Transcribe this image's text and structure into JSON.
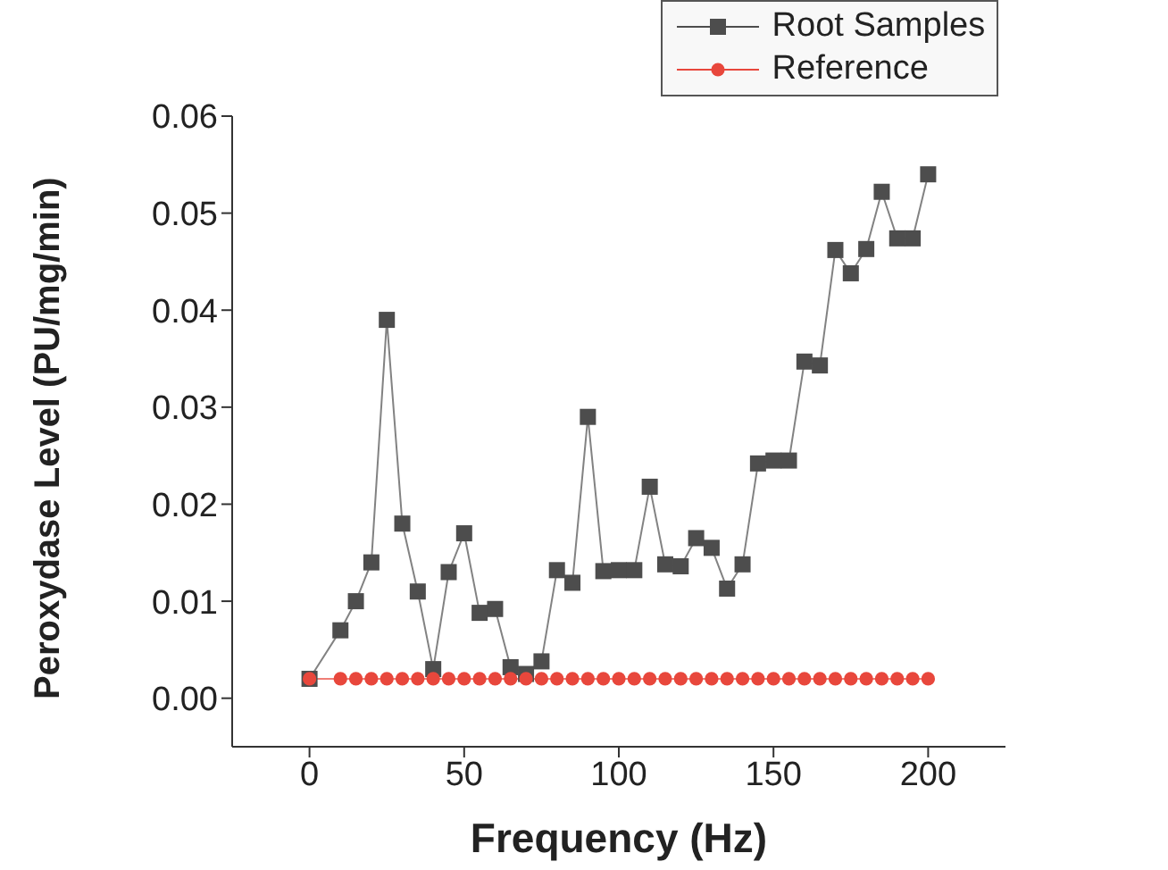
{
  "chart_data": {
    "type": "line",
    "xlabel": "Frequency (Hz)",
    "ylabel": "Peroxydase Level (PU/mg/min)",
    "xlim": [
      -25,
      225
    ],
    "xticks": [
      0,
      50,
      100,
      150,
      200
    ],
    "ylim": [
      -0.005,
      0.06
    ],
    "yticks": [
      {
        "value": 0,
        "label": "0.00"
      },
      {
        "value": 0.01,
        "label": "0.01"
      },
      {
        "value": 0.02,
        "label": "0.02"
      },
      {
        "value": 0.03,
        "label": "0.03"
      },
      {
        "value": 0.04,
        "label": "0.04"
      },
      {
        "value": 0.05,
        "label": "0.05"
      },
      {
        "value": 0.06,
        "label": "0.06"
      }
    ],
    "grid": false,
    "legend": "top right",
    "series": [
      {
        "name": "Root Samples",
        "color": "#4d4d4d",
        "marker": "square",
        "x": [
          0,
          10,
          15,
          20,
          25,
          30,
          35,
          40,
          45,
          50,
          55,
          60,
          65,
          70,
          75,
          80,
          85,
          90,
          95,
          100,
          105,
          110,
          115,
          120,
          125,
          130,
          135,
          140,
          145,
          150,
          155,
          160,
          165,
          170,
          175,
          180,
          185,
          190,
          195,
          200
        ],
        "values": [
          0.002,
          0.007,
          0.01,
          0.014,
          0.039,
          0.018,
          0.011,
          0.003,
          0.013,
          0.017,
          0.0088,
          0.0092,
          0.0032,
          0.0025,
          0.0038,
          0.0132,
          0.0119,
          0.029,
          0.0131,
          0.0132,
          0.0132,
          0.0218,
          0.0138,
          0.0136,
          0.0165,
          0.0155,
          0.0113,
          0.0138,
          0.0242,
          0.0245,
          0.0245,
          0.0347,
          0.0343,
          0.0462,
          0.0438,
          0.0463,
          0.0522,
          0.0474,
          0.0474,
          0.054
        ]
      },
      {
        "name": "Reference",
        "color": "#e8473c",
        "marker": "circle",
        "x": [
          0,
          10,
          15,
          20,
          25,
          30,
          35,
          40,
          45,
          50,
          55,
          60,
          65,
          70,
          75,
          80,
          85,
          90,
          95,
          100,
          105,
          110,
          115,
          120,
          125,
          130,
          135,
          140,
          145,
          150,
          155,
          160,
          165,
          170,
          175,
          180,
          185,
          190,
          195,
          200
        ],
        "values": [
          0.002,
          0.002,
          0.002,
          0.002,
          0.002,
          0.002,
          0.002,
          0.002,
          0.002,
          0.002,
          0.002,
          0.002,
          0.002,
          0.002,
          0.002,
          0.002,
          0.002,
          0.002,
          0.002,
          0.002,
          0.002,
          0.002,
          0.002,
          0.002,
          0.002,
          0.002,
          0.002,
          0.002,
          0.002,
          0.002,
          0.002,
          0.002,
          0.002,
          0.002,
          0.002,
          0.002,
          0.002,
          0.002,
          0.002,
          0.002
        ]
      }
    ]
  }
}
